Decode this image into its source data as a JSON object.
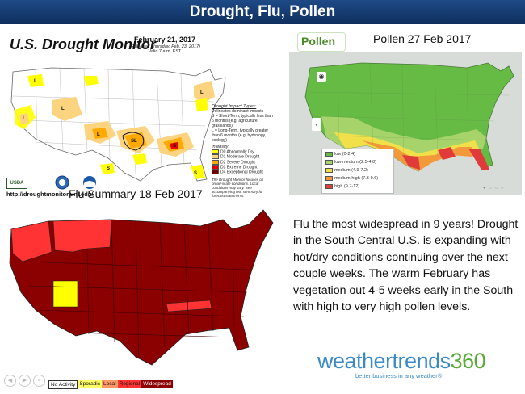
{
  "slide_title": "Drought, Flu, Pollen",
  "drought_panel": {
    "title": "U.S. Drought Monitor",
    "date": "February 21, 2017",
    "released": "(Released Thursday, Feb. 23, 2017)",
    "valid": "Valid 7 a.m. EST",
    "url": "http://droughtmonitor.unl.edu/",
    "impact_header": "Drought Impact Types:",
    "impact_items": [
      "Delineates dominant impacts",
      "S = Short-Term, typically less than 6 months (e.g. agriculture, grasslands)",
      "L = Long-Term, typically greater than 6 months (e.g. hydrology, ecology)"
    ],
    "intensity_header": "Intensity:",
    "intensity_levels": [
      {
        "label": "D0 Abnormally Dry",
        "color": "#ffff00"
      },
      {
        "label": "D1 Moderate Drought",
        "color": "#fcd37f"
      },
      {
        "label": "D2 Severe Drought",
        "color": "#ffaa00"
      },
      {
        "label": "D3 Extreme Drought",
        "color": "#e60000"
      },
      {
        "label": "D4 Exceptional Drought",
        "color": "#730000"
      }
    ],
    "footnote": "The Drought Monitor focuses on broad-scale conditions. Local conditions may vary. See accompanying text summary for forecast statements.",
    "agency_logos": [
      "usda-logo",
      "noaa-logo",
      "ndmc-logo"
    ]
  },
  "pollen_panel": {
    "logo_text": "Pollen",
    "title": "Pollen 27 Feb 2017",
    "legend": [
      {
        "label": "low (0-2.4)",
        "color": "#66bb44"
      },
      {
        "label": "low-medium (2.5-4.8)",
        "color": "#a6d46a"
      },
      {
        "label": "medium (4.9-7.2)",
        "color": "#f2e04a"
      },
      {
        "label": "medium-high (7.3-9.6)",
        "color": "#f29a3a"
      },
      {
        "label": "high (9.7-12)",
        "color": "#e03a3a"
      }
    ]
  },
  "flu_panel": {
    "title": "Flu Summary 18 Feb 2017",
    "legend": [
      {
        "label": "No Activity",
        "color": "#ffffff"
      },
      {
        "label": "Sporadic",
        "color": "#ffff66"
      },
      {
        "label": "Local",
        "color": "#ff9966"
      },
      {
        "label": "Regional",
        "color": "#ff3333"
      },
      {
        "label": "Widespread",
        "color": "#8b0000"
      }
    ]
  },
  "summary_text": "Flu the most widespread in 9 years! Drought in the South Central U.S. is expanding with hot/dry conditions continuing over the next couple weeks. The warm February has vegetation out 4-5 weeks early in the South with high to very high pollen levels.",
  "logo": {
    "name_part1": "weathertrends",
    "name_part2": "360",
    "tagline": "better business in any weather®"
  }
}
